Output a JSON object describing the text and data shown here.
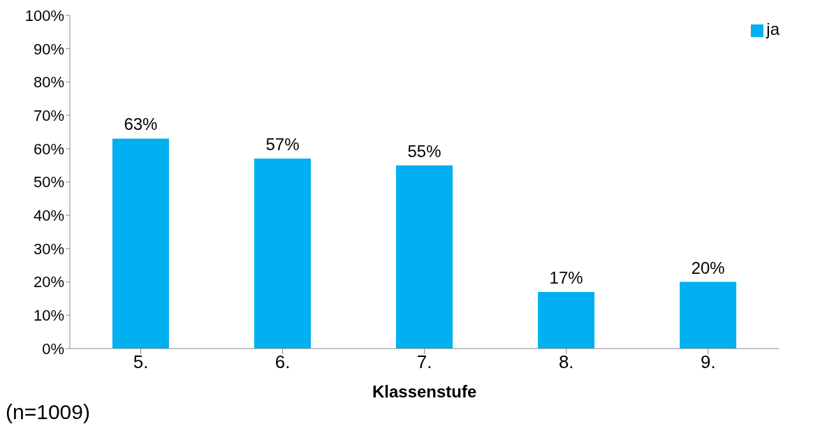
{
  "chart_data": {
    "type": "bar",
    "xlabel": "Klassenstufe",
    "categories": [
      "5.",
      "6.",
      "7.",
      "8.",
      "9."
    ],
    "series": [
      {
        "name": "ja",
        "color": "#00b0f0",
        "values": [
          63,
          57,
          55,
          17,
          20
        ],
        "value_labels": [
          "63%",
          "57%",
          "55%",
          "17%",
          "20%"
        ]
      }
    ],
    "ylim": [
      0,
      100
    ],
    "yticks": [
      {
        "value": 0,
        "label": "0%"
      },
      {
        "value": 10,
        "label": "10%"
      },
      {
        "value": 20,
        "label": "20%"
      },
      {
        "value": 30,
        "label": "30%"
      },
      {
        "value": 40,
        "label": "40%"
      },
      {
        "value": 50,
        "label": "50%"
      },
      {
        "value": 60,
        "label": "60%"
      },
      {
        "value": 70,
        "label": "70%"
      },
      {
        "value": 80,
        "label": "80%"
      },
      {
        "value": 90,
        "label": "90%"
      },
      {
        "value": 100,
        "label": "100%"
      }
    ],
    "grid": false,
    "legend": "top right",
    "annotations": [
      "(n=1009)"
    ]
  }
}
